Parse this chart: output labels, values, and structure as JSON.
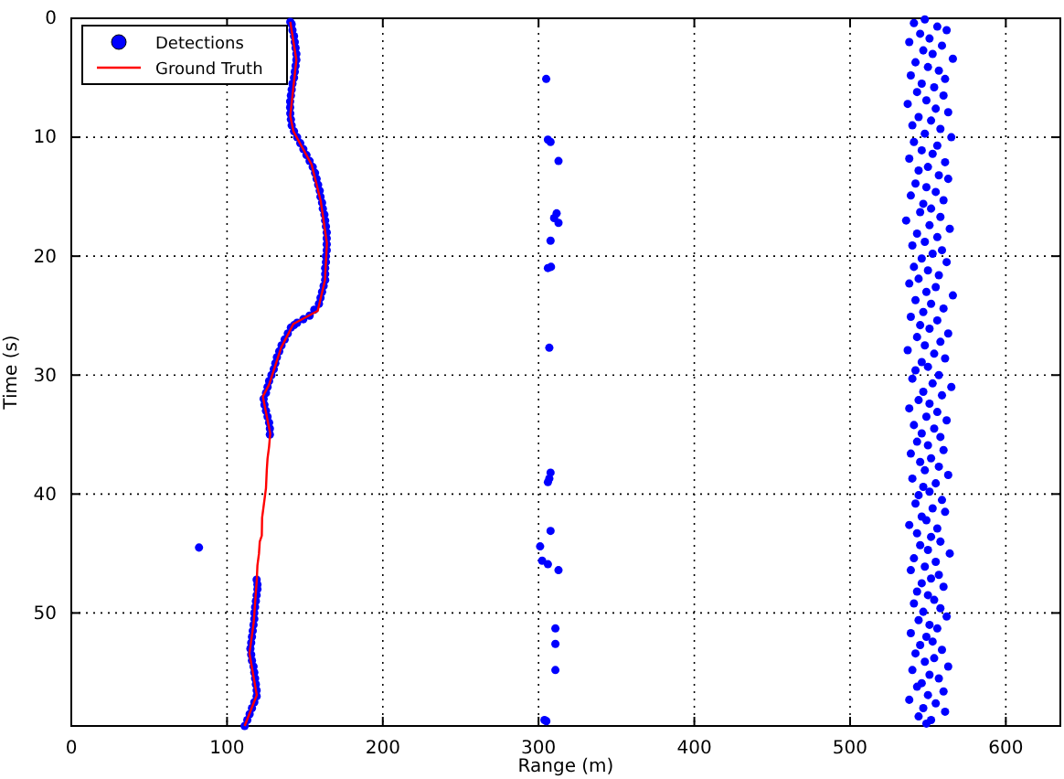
{
  "chart_data": {
    "type": "scatter",
    "xlabel": "Range (m)",
    "ylabel": "Time (s)",
    "xlim": [
      0,
      635
    ],
    "ylim": [
      59.5,
      0
    ],
    "xticks": [
      0,
      100,
      200,
      300,
      400,
      500,
      600
    ],
    "yticks": [
      0,
      10,
      20,
      30,
      40,
      50
    ],
    "grid": true,
    "legend": "top left",
    "marker": "circle",
    "series": [
      {
        "name": "Detections",
        "color": "#0000ff",
        "x": [
          140.6,
          141.5,
          142,
          143,
          143.5,
          144,
          144.5,
          144.5,
          144,
          143.5,
          143,
          142,
          141.5,
          141,
          140.5,
          140.5,
          140.6,
          141,
          141.5,
          143,
          145,
          147,
          149,
          151,
          153,
          155,
          156.5,
          157.5,
          158.5,
          159.5,
          160,
          161,
          161.5,
          162.5,
          163,
          163.5,
          164,
          164,
          164,
          164,
          163.5,
          163.5,
          163,
          163,
          163,
          162,
          161,
          160,
          159,
          156,
          153,
          149,
          145,
          143,
          141,
          139,
          137,
          135,
          133.5,
          132,
          131,
          130,
          128.5,
          127,
          126,
          125,
          123.5,
          124,
          125,
          126,
          127,
          127.5,
          127.5,
          119,
          119.5,
          119.5,
          119,
          118.5,
          118,
          117.5,
          117.5,
          117,
          116.5,
          116,
          115.5,
          115,
          115.5,
          116,
          117,
          117.5,
          118,
          118.5,
          119,
          119,
          117.5,
          116,
          114.5,
          113,
          111.3,
          82,
          304.9,
          306,
          307.7,
          312.8,
          311.6,
          310,
          312.8,
          307.7,
          306,
          308,
          306.9,
          307.7,
          306.9,
          306,
          307.7,
          301,
          302.3,
          306,
          312.8,
          310.8,
          310.8,
          310.8,
          303.8,
          305,
          548,
          541,
          556,
          562,
          545,
          551,
          538,
          559,
          547,
          553,
          566,
          542,
          550,
          557,
          539,
          561,
          546,
          554,
          543,
          560,
          549,
          537,
          555,
          563,
          544,
          552,
          540,
          558,
          548,
          565,
          541,
          556,
          546,
          553,
          538,
          561,
          550,
          544,
          557,
          563,
          542,
          549,
          555,
          539,
          560,
          547,
          552,
          545,
          558,
          536,
          551,
          564,
          543,
          556,
          548,
          540,
          559,
          553,
          546,
          562,
          541,
          550,
          557,
          544,
          538,
          555,
          549,
          566,
          542,
          552,
          560,
          547,
          539,
          556,
          545,
          551,
          563,
          543,
          558,
          548,
          537,
          554,
          561,
          546,
          550,
          542,
          557,
          540,
          553,
          565,
          547,
          559,
          544,
          551,
          538,
          556,
          549,
          562,
          541,
          554,
          546,
          558,
          543,
          550,
          560,
          539,
          552,
          545,
          557,
          548,
          563,
          540,
          555,
          547,
          551,
          544,
          559,
          542,
          553,
          561,
          546,
          549,
          538,
          556,
          543,
          552,
          558,
          545,
          550,
          564,
          541,
          555,
          548,
          539,
          557,
          552,
          546,
          560,
          543,
          550,
          554,
          541,
          558,
          547,
          562,
          544,
          551,
          556,
          539,
          549,
          553,
          545,
          559,
          542,
          554,
          548,
          563,
          540,
          551,
          557,
          546,
          543,
          560,
          550,
          538,
          555,
          547,
          561,
          544,
          552,
          549
        ],
        "values": [
          0.3,
          0.5,
          1,
          1.5,
          2,
          2.5,
          3,
          3.5,
          4,
          4.5,
          5,
          5.5,
          6,
          6.5,
          7,
          7.5,
          8,
          8.5,
          9,
          9.5,
          10,
          10.5,
          11,
          11.5,
          12,
          12.5,
          13,
          13.5,
          14,
          14.5,
          15,
          15.5,
          16,
          16.5,
          17,
          17.5,
          18,
          18.5,
          19,
          19.5,
          20,
          20.5,
          21,
          21.5,
          22,
          22.5,
          23,
          23.5,
          24,
          24.5,
          25,
          25.3,
          25.6,
          25.8,
          26,
          26.5,
          27,
          27.5,
          28,
          28.5,
          29,
          29.5,
          30,
          30.5,
          31,
          31.5,
          32,
          32.5,
          33,
          33.5,
          34,
          34.5,
          35,
          47.2,
          47.6,
          48,
          48.5,
          49,
          49.5,
          50,
          50.5,
          51,
          51.5,
          52,
          52.5,
          53,
          53.5,
          54,
          54.5,
          55,
          55.5,
          56,
          56.5,
          57,
          57.5,
          58,
          58.5,
          59,
          59.5,
          44.5,
          5.1,
          10.2,
          10.4,
          12,
          16.4,
          16.8,
          17.2,
          18.7,
          21,
          20.9,
          27.7,
          38.2,
          38.7,
          39,
          43.1,
          44.4,
          45.6,
          45.9,
          46.4,
          51.3,
          52.6,
          54.8,
          59,
          59.1,
          0.1,
          0.4,
          0.7,
          1,
          1.3,
          1.7,
          2,
          2.3,
          2.7,
          3,
          3.4,
          3.7,
          4.1,
          4.4,
          4.8,
          5.1,
          5.5,
          5.8,
          6.2,
          6.5,
          6.9,
          7.2,
          7.6,
          7.9,
          8.3,
          8.6,
          9,
          9.3,
          9.7,
          10,
          10.4,
          10.7,
          11.1,
          11.4,
          11.8,
          12.1,
          12.5,
          12.8,
          13.2,
          13.5,
          13.9,
          14.2,
          14.6,
          14.9,
          15.3,
          15.6,
          16,
          16.3,
          16.7,
          17,
          17.4,
          17.7,
          18.1,
          18.4,
          18.8,
          19.1,
          19.5,
          19.8,
          20.2,
          20.5,
          20.9,
          21.2,
          21.6,
          21.9,
          22.3,
          22.6,
          23,
          23.3,
          23.7,
          24,
          24.4,
          24.7,
          25.1,
          25.4,
          25.8,
          26.1,
          26.5,
          26.8,
          27.2,
          27.5,
          27.9,
          28.2,
          28.6,
          28.9,
          29.3,
          29.6,
          30,
          30.3,
          30.7,
          31,
          31.4,
          31.7,
          32.1,
          32.4,
          32.8,
          33.1,
          33.5,
          33.8,
          34.2,
          34.5,
          34.9,
          35.2,
          35.6,
          35.9,
          36.3,
          36.6,
          37,
          37.3,
          37.7,
          38,
          38.4,
          38.7,
          39.1,
          39.4,
          39.8,
          40.1,
          40.5,
          40.8,
          41.2,
          41.5,
          41.9,
          42.2,
          42.6,
          42.9,
          43.3,
          43.6,
          44,
          44.3,
          44.7,
          45,
          45.4,
          45.7,
          46.1,
          46.4,
          46.8,
          47.1,
          47.5,
          47.8,
          48.2,
          48.5,
          48.9,
          49.2,
          49.6,
          49.9,
          50.3,
          50.6,
          51,
          51.3,
          51.7,
          52,
          52.4,
          52.7,
          53.1,
          53.4,
          53.8,
          54.1,
          54.5,
          54.8,
          55.2,
          55.5,
          55.9,
          56.2,
          56.6,
          56.9,
          57.3,
          57.6,
          58,
          58.3,
          58.7,
          59,
          59.3
        ]
      },
      {
        "name": "Ground Truth",
        "type": "line",
        "color": "#ff0000",
        "marker": "none",
        "x": [
          140.6,
          144.5,
          140.6,
          142.6,
          154.3,
          160.2,
          164.1,
          162.9,
          158.2,
          142.6,
          134.7,
          127,
          123,
          127.7,
          127,
          126,
          125.5,
          125,
          124.5,
          123.5,
          122.5,
          122.3,
          121,
          120.5,
          119.5,
          119.1,
          117.1,
          114.4,
          119.1,
          111.3
        ],
        "values": [
          0.3,
          3.5,
          8.2,
          9.5,
          12.3,
          15.4,
          18.9,
          22,
          24.6,
          25.7,
          27.7,
          30.8,
          31.8,
          34.9,
          36,
          37,
          38,
          39.5,
          40,
          41,
          42,
          43.5,
          44,
          45,
          46,
          47.2,
          50.8,
          53.4,
          56.9,
          59.5
        ]
      }
    ]
  }
}
